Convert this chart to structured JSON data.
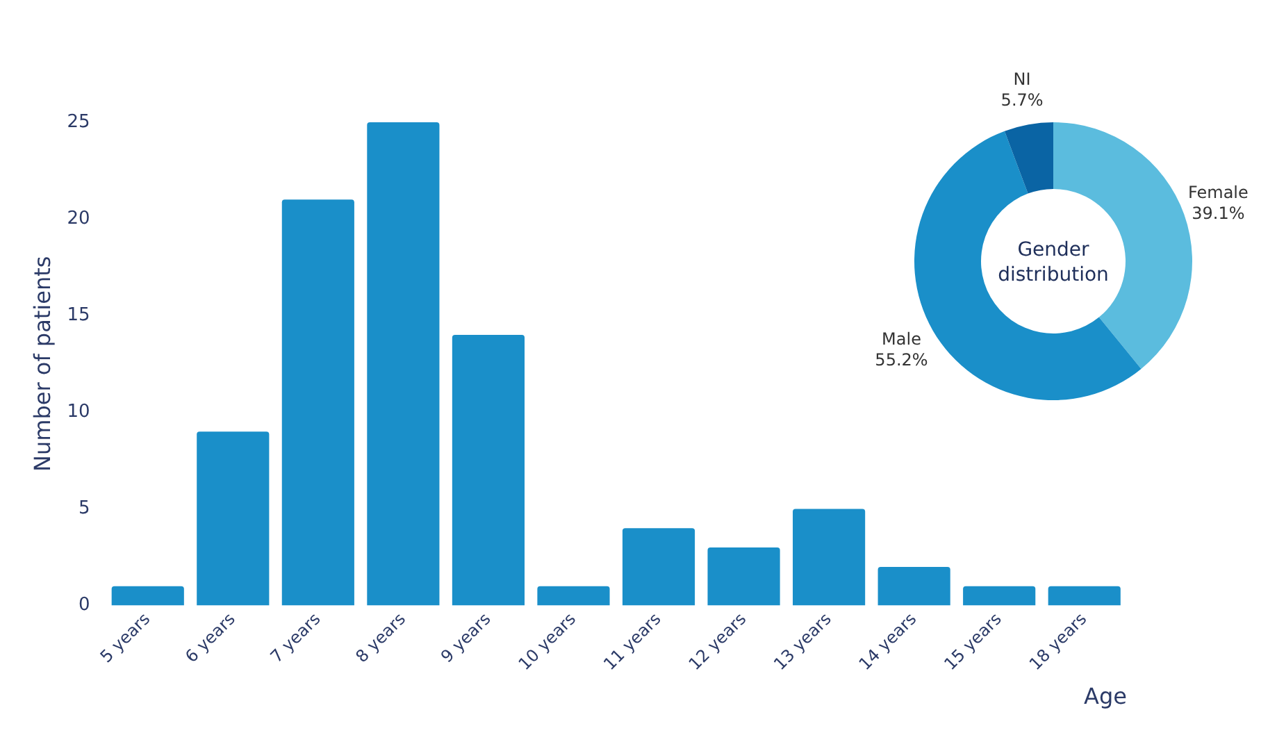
{
  "chart_data": [
    {
      "type": "bar",
      "xlabel": "Age",
      "ylabel": "Number of patients",
      "categories": [
        "5 years",
        "6 years",
        "7 years",
        "8 years",
        "9 years",
        "10 years",
        "11 years",
        "12 years",
        "13 years",
        "14 years",
        "15 years",
        "18 years"
      ],
      "values": [
        1,
        9,
        21,
        25,
        14,
        1,
        4,
        3,
        5,
        2,
        1,
        1
      ],
      "color": "#1a8fc9",
      "ylim": [
        0,
        25
      ],
      "yticks": [
        0,
        5,
        10,
        15,
        20,
        25
      ],
      "grid": false,
      "legend": false
    },
    {
      "type": "donut",
      "title": "Gender distribution",
      "categories": [
        "Female",
        "Male",
        "NI"
      ],
      "values": [
        39.1,
        55.2,
        5.7
      ],
      "colors": [
        "#5bbcde",
        "#1a8fc9",
        "#0a64a4"
      ],
      "value_labels": [
        "39.1%",
        "55.2%",
        "5.7%"
      ],
      "legend": false
    }
  ]
}
